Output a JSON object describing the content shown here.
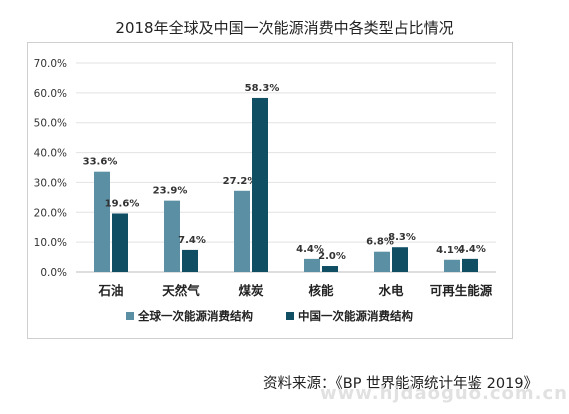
{
  "title": "2018年全球及中国一次能源消费中各类型占比情况",
  "source_text": "资料来源：《BP 世界能源统计年鉴 2019》",
  "watermark_text": "www.hjdaoguo.com.cn",
  "chart_data": {
    "type": "bar",
    "categories": [
      "石油",
      "天然气",
      "煤炭",
      "核能",
      "水电",
      "可再生能源"
    ],
    "series": [
      {
        "name": "全球一次能源消费结构",
        "values": [
          33.6,
          23.9,
          27.2,
          4.4,
          6.8,
          4.1
        ],
        "labels": [
          "33.6%",
          "23.9%",
          "27.2%",
          "4.4%",
          "6.8%",
          "4.1%"
        ],
        "color": "#5b8fa3"
      },
      {
        "name": "中国一次能源消费结构",
        "values": [
          19.6,
          7.4,
          58.3,
          2.0,
          8.3,
          4.4
        ],
        "labels": [
          "19.6%",
          "7.4%",
          "58.3%",
          "2.0%",
          "8.3%",
          "4.4%"
        ],
        "color": "#0f4e63"
      }
    ],
    "y_ticks": [
      "0.0%",
      "10.0%",
      "20.0%",
      "30.0%",
      "40.0%",
      "50.0%",
      "60.0%",
      "70.0%"
    ],
    "ylim": [
      0,
      70
    ],
    "grid": true,
    "legend_position": "bottom"
  }
}
